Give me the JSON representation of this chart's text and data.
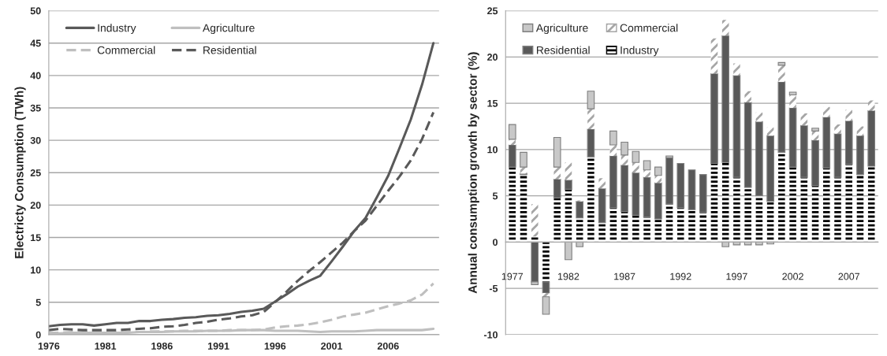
{
  "chart_data": [
    {
      "type": "line",
      "ylabel": "Electricty Consumption (TWh)",
      "x": [
        1976,
        1977,
        1978,
        1979,
        1980,
        1981,
        1982,
        1983,
        1984,
        1985,
        1986,
        1987,
        1988,
        1989,
        1990,
        1991,
        1992,
        1993,
        1994,
        1995,
        1996,
        1997,
        1998,
        1999,
        2000,
        2001,
        2002,
        2003,
        2004,
        2005,
        2006,
        2007,
        2008,
        2009,
        2010
      ],
      "xlim": [
        1976,
        2010.5
      ],
      "xticks": [
        1976,
        1981,
        1986,
        1991,
        1996,
        2001,
        2006
      ],
      "ylim": [
        0,
        50
      ],
      "yticks": [
        0,
        5,
        10,
        15,
        20,
        25,
        30,
        35,
        40,
        45,
        50
      ],
      "grid": "y",
      "legend": "top left",
      "series": [
        {
          "name": "Industry",
          "color": "#595959",
          "line_style": "solid",
          "values": [
            1.3,
            1.5,
            1.6,
            1.6,
            1.4,
            1.6,
            1.8,
            1.8,
            2.1,
            2.1,
            2.3,
            2.4,
            2.6,
            2.7,
            2.9,
            3.0,
            3.2,
            3.5,
            3.7,
            4.0,
            5.1,
            6.2,
            7.4,
            8.3,
            9.1,
            11.3,
            13.6,
            16.0,
            18.0,
            21.2,
            24.5,
            28.8,
            33.2,
            38.6,
            45.0
          ]
        },
        {
          "name": "Agriculture",
          "color": "#bfbfbf",
          "line_style": "solid",
          "values": [
            0.2,
            0.2,
            0.3,
            0.3,
            0.3,
            0.3,
            0.3,
            0.3,
            0.4,
            0.4,
            0.4,
            0.5,
            0.5,
            0.5,
            0.6,
            0.6,
            0.6,
            0.7,
            0.7,
            0.7,
            0.6,
            0.6,
            0.6,
            0.5,
            0.4,
            0.5,
            0.5,
            0.5,
            0.6,
            0.7,
            0.7,
            0.7,
            0.7,
            0.7,
            0.9
          ]
        },
        {
          "name": "Commercial",
          "color": "#bfbfbf",
          "line_style": "dashed",
          "values": [
            0.3,
            0.3,
            0.4,
            0.4,
            0.4,
            0.4,
            0.4,
            0.4,
            0.4,
            0.5,
            0.5,
            0.5,
            0.6,
            0.6,
            0.6,
            0.6,
            0.7,
            0.7,
            0.7,
            0.8,
            1.1,
            1.3,
            1.4,
            1.6,
            1.9,
            2.3,
            2.8,
            3.1,
            3.4,
            3.9,
            4.4,
            4.8,
            5.3,
            6.2,
            7.9
          ]
        },
        {
          "name": "Residential",
          "color": "#595959",
          "line_style": "dashed",
          "values": [
            0.7,
            0.9,
            0.8,
            0.7,
            0.7,
            0.7,
            0.7,
            0.8,
            0.9,
            1.0,
            1.2,
            1.3,
            1.5,
            1.8,
            2.0,
            2.3,
            2.5,
            2.8,
            3.0,
            3.5,
            5.0,
            6.6,
            8.3,
            9.8,
            11.2,
            12.7,
            14.2,
            16.0,
            17.6,
            19.9,
            22.2,
            24.4,
            26.9,
            30.2,
            34.3
          ]
        }
      ]
    },
    {
      "type": "bar",
      "stacked": true,
      "ylabel": "Annual consumption growth by sector (%)",
      "categories": [
        "1977",
        null,
        null,
        null,
        null,
        "1982",
        null,
        null,
        null,
        null,
        "1987",
        null,
        null,
        null,
        null,
        "1992",
        null,
        null,
        null,
        null,
        "1997",
        null,
        null,
        null,
        null,
        "2002",
        null,
        null,
        null,
        null,
        "2007",
        null,
        null
      ],
      "ylim": [
        -10,
        25
      ],
      "yticks": [
        -10,
        -5,
        0,
        5,
        10,
        15,
        20,
        25
      ],
      "grid": "y",
      "legend": "top left",
      "series": [
        {
          "name": "Industry",
          "color": "#000000",
          "values": [
            8.1,
            7.3,
            0.6,
            -4.3,
            4.8,
            5.7,
            2.6,
            9.2,
            2.1,
            3.7,
            3.3,
            2.9,
            2.7,
            2.5,
            4.1,
            3.7,
            3.5,
            3.2,
            8.5,
            8.6,
            7.0,
            5.9,
            5.0,
            4.4,
            9.7,
            8.1,
            7.0,
            6.1,
            8.0,
            7.0,
            8.4,
            7.3,
            8.2
          ]
        },
        {
          "name": "Residential",
          "color": "#595959",
          "values": [
            2.4,
            0.1,
            -4.3,
            -1.2,
            2.0,
            1.0,
            1.8,
            3.0,
            3.7,
            5.6,
            5.0,
            4.6,
            4.3,
            3.9,
            5.0,
            4.8,
            4.3,
            4.1,
            9.7,
            13.7,
            11.0,
            9.2,
            8.0,
            7.1,
            7.6,
            6.4,
            5.6,
            4.9,
            5.5,
            4.7,
            4.7,
            4.2,
            6.0
          ]
        },
        {
          "name": "Commercial",
          "color": "#a6a6a6",
          "values": [
            0.6,
            0.7,
            3.5,
            -0.4,
            1.3,
            1.9,
            0.1,
            2.2,
            1.1,
            1.2,
            1.1,
            1.1,
            0.8,
            0.8,
            null,
            null,
            null,
            null,
            3.8,
            1.7,
            1.3,
            1.2,
            1.0,
            0.9,
            1.8,
            1.4,
            1.3,
            1.0,
            1.1,
            1.0,
            1.2,
            1.0,
            1.1
          ]
        },
        {
          "name": "Agriculture",
          "color": "#c8c8c8",
          "values": [
            1.6,
            1.6,
            -0.3,
            -1.9,
            3.2,
            -1.9,
            -0.5,
            1.9,
            null,
            1.5,
            1.4,
            1.2,
            1.0,
            0.9,
            0.2,
            null,
            null,
            null,
            null,
            -0.5,
            -0.3,
            -0.3,
            -0.3,
            -0.2,
            0.3,
            0.3,
            null,
            0.3,
            null,
            null,
            null,
            null,
            null
          ]
        }
      ]
    }
  ]
}
